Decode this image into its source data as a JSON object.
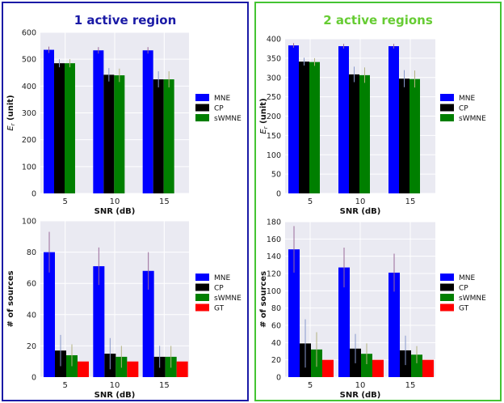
{
  "panels": [
    {
      "title": "1 active region",
      "border_color": "#1a1aa6",
      "title_color": "#1a1aa6"
    },
    {
      "title": "2 active regions",
      "border_color": "#44c433",
      "title_color": "#66cc33"
    }
  ],
  "colors": {
    "MNE": "#0000ff",
    "CP": "#000000",
    "sWMNE": "#007f00",
    "GT": "#ff0000",
    "plot_bg": "#eaeaf2",
    "grid": "#ffffff"
  },
  "chart_data": [
    {
      "panel": 0,
      "type": "bar",
      "categories": [
        "5",
        "10",
        "15"
      ],
      "xlabel": "SNR (dB)",
      "ylabel": "E_r (unit)",
      "ylim": [
        0,
        600
      ],
      "yticks": [
        0,
        100,
        200,
        300,
        400,
        500,
        600
      ],
      "grid": true,
      "legend": "right",
      "series": [
        {
          "name": "MNE",
          "values": [
            535,
            533,
            533
          ],
          "err": [
            12,
            12,
            12
          ]
        },
        {
          "name": "CP",
          "values": [
            485,
            442,
            425
          ],
          "err": [
            15,
            25,
            30
          ]
        },
        {
          "name": "sWMNE",
          "values": [
            485,
            440,
            425
          ],
          "err": [
            15,
            25,
            30
          ]
        }
      ]
    },
    {
      "panel": 1,
      "type": "bar",
      "categories": [
        "5",
        "10",
        "15"
      ],
      "xlabel": "SNR (dB)",
      "ylabel": "E_r (unit)",
      "ylim": [
        0,
        400
      ],
      "yticks": [
        0,
        50,
        100,
        150,
        200,
        250,
        300,
        350,
        400
      ],
      "grid": true,
      "legend": "right",
      "series": [
        {
          "name": "MNE",
          "values": [
            383,
            381,
            381
          ],
          "err": [
            6,
            6,
            6
          ]
        },
        {
          "name": "CP",
          "values": [
            341,
            308,
            297
          ],
          "err": [
            10,
            20,
            22
          ]
        },
        {
          "name": "sWMNE",
          "values": [
            340,
            306,
            296
          ],
          "err": [
            10,
            20,
            22
          ]
        }
      ]
    },
    {
      "panel": 0,
      "type": "bar",
      "categories": [
        "5",
        "10",
        "15"
      ],
      "xlabel": "SNR (dB)",
      "ylabel": "# of sources",
      "ylim": [
        0,
        100
      ],
      "yticks": [
        0,
        20,
        40,
        60,
        80,
        100
      ],
      "grid": true,
      "legend": "right",
      "series": [
        {
          "name": "MNE",
          "values": [
            80,
            71,
            68
          ],
          "err": [
            13,
            12,
            12
          ]
        },
        {
          "name": "CP",
          "values": [
            17,
            15,
            13
          ],
          "err": [
            10,
            10,
            7
          ]
        },
        {
          "name": "sWMNE",
          "values": [
            14,
            13,
            13
          ],
          "err": [
            7,
            7,
            7
          ]
        },
        {
          "name": "GT",
          "values": [
            10,
            10,
            10
          ],
          "err": [
            0,
            0,
            0
          ]
        }
      ]
    },
    {
      "panel": 1,
      "type": "bar",
      "categories": [
        "5",
        "10",
        "15"
      ],
      "xlabel": "SNR (dB)",
      "ylabel": "# of sources",
      "ylim": [
        0,
        180
      ],
      "yticks": [
        0,
        20,
        40,
        60,
        80,
        100,
        120,
        140,
        160,
        180
      ],
      "grid": true,
      "legend": "right",
      "series": [
        {
          "name": "MNE",
          "values": [
            148,
            127,
            121
          ],
          "err": [
            27,
            23,
            22
          ]
        },
        {
          "name": "CP",
          "values": [
            39,
            33,
            31
          ],
          "err": [
            28,
            17,
            17
          ]
        },
        {
          "name": "sWMNE",
          "values": [
            32,
            27,
            26
          ],
          "err": [
            20,
            12,
            10
          ]
        },
        {
          "name": "GT",
          "values": [
            20,
            20,
            20
          ],
          "err": [
            0,
            0,
            0
          ]
        }
      ]
    }
  ]
}
